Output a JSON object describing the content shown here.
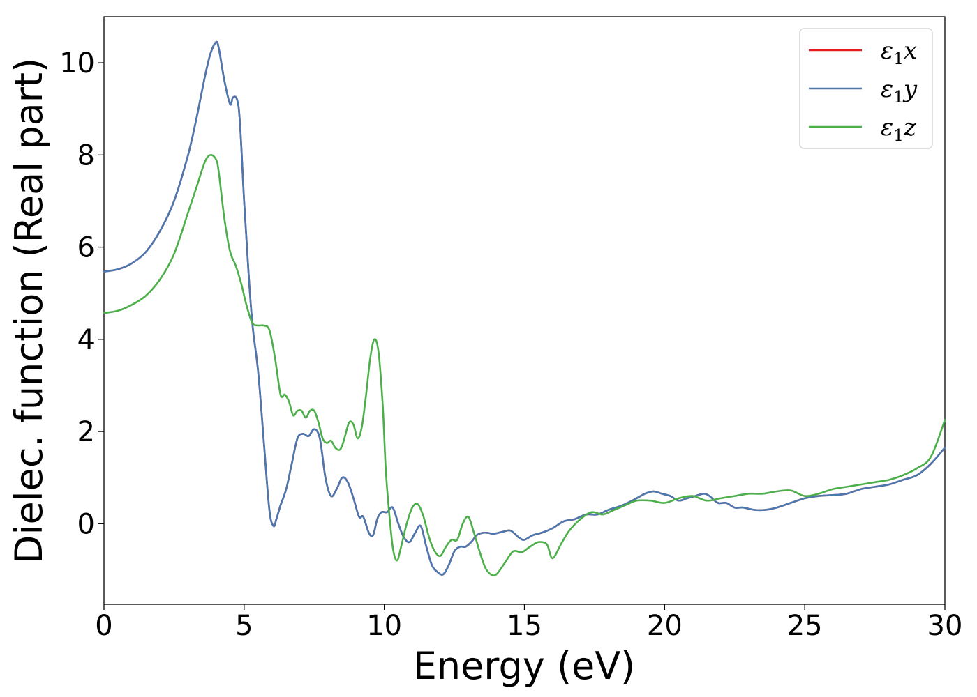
{
  "chart_data": {
    "type": "line",
    "title": "",
    "xlabel": "Energy (eV)",
    "ylabel": "Dielec. function (Real part)",
    "xlim": [
      0,
      30
    ],
    "ylim": [
      -1.75,
      11
    ],
    "xticks": [
      0,
      5,
      10,
      15,
      20,
      25,
      30
    ],
    "yticks": [
      0,
      2,
      4,
      6,
      8,
      10
    ],
    "grid": false,
    "legend_position": "top-right",
    "series": [
      {
        "name": "ε₁x",
        "legend_main": "ε",
        "legend_sub": "1",
        "legend_var": "x",
        "color": "#e41a1c",
        "x": [
          0,
          0.5,
          1,
          1.5,
          2,
          2.5,
          3,
          3.3,
          3.6,
          3.8,
          4.0,
          4.1,
          4.3,
          4.5,
          4.6,
          4.75,
          4.85,
          5.0,
          5.15,
          5.3,
          5.5,
          5.7,
          5.9,
          6.05,
          6.15,
          6.3,
          6.5,
          6.7,
          6.9,
          7.1,
          7.3,
          7.5,
          7.7,
          7.9,
          8.1,
          8.3,
          8.5,
          8.7,
          8.9,
          9.1,
          9.25,
          9.45,
          9.6,
          9.75,
          9.9,
          10.1,
          10.3,
          10.5,
          10.7,
          10.9,
          11.1,
          11.3,
          11.5,
          11.7,
          11.9,
          12.1,
          12.3,
          12.5,
          12.7,
          12.9,
          13.1,
          13.3,
          13.5,
          13.7,
          13.9,
          14.2,
          14.5,
          14.8,
          15.0,
          15.3,
          15.6,
          16.0,
          16.4,
          16.8,
          17.2,
          17.6,
          18.0,
          18.5,
          19.0,
          19.3,
          19.6,
          19.9,
          20.2,
          20.5,
          20.8,
          21.1,
          21.4,
          21.6,
          21.9,
          22.2,
          22.5,
          22.8,
          23.2,
          23.6,
          24.0,
          24.5,
          25.0,
          25.5,
          26.0,
          26.5,
          27.0,
          27.5,
          28.0,
          28.5,
          29.0,
          29.5,
          30.0
        ],
        "y": [
          5.47,
          5.52,
          5.65,
          5.9,
          6.35,
          7.0,
          8.0,
          8.8,
          9.7,
          10.2,
          10.45,
          10.3,
          9.6,
          9.1,
          9.25,
          9.2,
          8.7,
          7.0,
          5.5,
          4.3,
          3.3,
          1.8,
          0.3,
          -0.05,
          0.1,
          0.4,
          0.75,
          1.3,
          1.85,
          1.95,
          1.9,
          2.05,
          1.85,
          1.0,
          0.6,
          0.75,
          1.0,
          0.9,
          0.55,
          0.15,
          0.15,
          -0.2,
          -0.25,
          0.1,
          0.25,
          0.25,
          0.35,
          0.0,
          -0.3,
          -0.4,
          -0.2,
          -0.05,
          -0.5,
          -0.9,
          -1.05,
          -1.1,
          -0.9,
          -0.6,
          -0.5,
          -0.5,
          -0.4,
          -0.25,
          -0.2,
          -0.2,
          -0.22,
          -0.18,
          -0.15,
          -0.3,
          -0.35,
          -0.25,
          -0.2,
          -0.1,
          0.05,
          0.1,
          0.2,
          0.2,
          0.3,
          0.4,
          0.55,
          0.65,
          0.7,
          0.65,
          0.6,
          0.5,
          0.55,
          0.6,
          0.65,
          0.6,
          0.45,
          0.45,
          0.35,
          0.35,
          0.3,
          0.3,
          0.35,
          0.45,
          0.55,
          0.6,
          0.62,
          0.65,
          0.75,
          0.8,
          0.85,
          0.95,
          1.05,
          1.3,
          1.65
        ]
      },
      {
        "name": "ε₁y",
        "legend_main": "ε",
        "legend_sub": "1",
        "legend_var": "y",
        "color": "#4a78b0",
        "x": [
          0,
          0.5,
          1,
          1.5,
          2,
          2.5,
          3,
          3.3,
          3.6,
          3.8,
          4.0,
          4.1,
          4.3,
          4.5,
          4.6,
          4.75,
          4.85,
          5.0,
          5.15,
          5.3,
          5.5,
          5.7,
          5.9,
          6.05,
          6.15,
          6.3,
          6.5,
          6.7,
          6.9,
          7.1,
          7.3,
          7.5,
          7.7,
          7.9,
          8.1,
          8.3,
          8.5,
          8.7,
          8.9,
          9.1,
          9.25,
          9.45,
          9.6,
          9.75,
          9.9,
          10.1,
          10.3,
          10.5,
          10.7,
          10.9,
          11.1,
          11.3,
          11.5,
          11.7,
          11.9,
          12.1,
          12.3,
          12.5,
          12.7,
          12.9,
          13.1,
          13.3,
          13.5,
          13.7,
          13.9,
          14.2,
          14.5,
          14.8,
          15.0,
          15.3,
          15.6,
          16.0,
          16.4,
          16.8,
          17.2,
          17.6,
          18.0,
          18.5,
          19.0,
          19.3,
          19.6,
          19.9,
          20.2,
          20.5,
          20.8,
          21.1,
          21.4,
          21.6,
          21.9,
          22.2,
          22.5,
          22.8,
          23.2,
          23.6,
          24.0,
          24.5,
          25.0,
          25.5,
          26.0,
          26.5,
          27.0,
          27.5,
          28.0,
          28.5,
          29.0,
          29.5,
          30.0
        ],
        "y": [
          5.47,
          5.52,
          5.65,
          5.9,
          6.35,
          7.0,
          8.0,
          8.8,
          9.7,
          10.2,
          10.45,
          10.3,
          9.6,
          9.1,
          9.25,
          9.2,
          8.7,
          7.0,
          5.5,
          4.3,
          3.3,
          1.8,
          0.3,
          -0.05,
          0.1,
          0.4,
          0.75,
          1.3,
          1.85,
          1.95,
          1.9,
          2.05,
          1.85,
          1.0,
          0.6,
          0.75,
          1.0,
          0.9,
          0.55,
          0.15,
          0.15,
          -0.2,
          -0.25,
          0.1,
          0.25,
          0.25,
          0.35,
          0.0,
          -0.3,
          -0.4,
          -0.2,
          -0.05,
          -0.5,
          -0.9,
          -1.05,
          -1.1,
          -0.9,
          -0.6,
          -0.5,
          -0.5,
          -0.4,
          -0.25,
          -0.2,
          -0.2,
          -0.22,
          -0.18,
          -0.15,
          -0.3,
          -0.35,
          -0.25,
          -0.2,
          -0.1,
          0.05,
          0.1,
          0.2,
          0.2,
          0.3,
          0.4,
          0.55,
          0.65,
          0.7,
          0.65,
          0.6,
          0.5,
          0.55,
          0.6,
          0.65,
          0.6,
          0.45,
          0.45,
          0.35,
          0.35,
          0.3,
          0.3,
          0.35,
          0.45,
          0.55,
          0.6,
          0.62,
          0.65,
          0.75,
          0.8,
          0.85,
          0.95,
          1.05,
          1.3,
          1.65
        ]
      },
      {
        "name": "ε₁z",
        "legend_main": "ε",
        "legend_sub": "1",
        "legend_var": "z",
        "color": "#4daf4a",
        "x": [
          0,
          0.5,
          1,
          1.5,
          2,
          2.5,
          3,
          3.3,
          3.6,
          3.8,
          4.0,
          4.1,
          4.3,
          4.5,
          4.7,
          4.9,
          5.1,
          5.3,
          5.5,
          5.7,
          5.9,
          6.1,
          6.3,
          6.45,
          6.6,
          6.75,
          6.9,
          7.05,
          7.2,
          7.35,
          7.5,
          7.65,
          7.8,
          7.95,
          8.1,
          8.25,
          8.4,
          8.5,
          8.6,
          8.75,
          8.9,
          9.05,
          9.2,
          9.35,
          9.5,
          9.65,
          9.8,
          9.95,
          10.05,
          10.15,
          10.3,
          10.45,
          10.6,
          10.8,
          11.0,
          11.2,
          11.4,
          11.6,
          11.8,
          12.0,
          12.2,
          12.4,
          12.6,
          12.8,
          13.0,
          13.2,
          13.4,
          13.6,
          13.8,
          14.0,
          14.3,
          14.6,
          14.9,
          15.2,
          15.5,
          15.8,
          16.0,
          16.3,
          16.6,
          17.0,
          17.4,
          17.8,
          18.2,
          18.6,
          19.0,
          19.5,
          20.0,
          20.5,
          21.0,
          21.5,
          22.0,
          22.5,
          23.0,
          23.5,
          24.0,
          24.5,
          25.0,
          25.5,
          26.0,
          26.5,
          27.0,
          27.5,
          28.0,
          28.5,
          29.0,
          29.5,
          30.0
        ],
        "y": [
          4.57,
          4.62,
          4.75,
          4.95,
          5.3,
          5.85,
          6.75,
          7.3,
          7.85,
          8.0,
          7.9,
          7.6,
          6.6,
          5.9,
          5.6,
          5.2,
          4.7,
          4.35,
          4.3,
          4.3,
          4.2,
          3.6,
          2.8,
          2.8,
          2.65,
          2.35,
          2.45,
          2.45,
          2.3,
          2.45,
          2.45,
          2.2,
          1.85,
          1.75,
          1.8,
          1.65,
          1.6,
          1.7,
          1.9,
          2.2,
          2.15,
          1.85,
          2.1,
          2.8,
          3.6,
          4.0,
          3.7,
          2.5,
          1.2,
          0.4,
          -0.5,
          -0.8,
          -0.5,
          0.0,
          0.35,
          0.42,
          0.15,
          -0.3,
          -0.6,
          -0.7,
          -0.5,
          -0.35,
          -0.35,
          0.0,
          0.15,
          -0.2,
          -0.6,
          -0.95,
          -1.1,
          -1.1,
          -0.85,
          -0.6,
          -0.62,
          -0.5,
          -0.4,
          -0.45,
          -0.75,
          -0.45,
          -0.15,
          0.1,
          0.25,
          0.2,
          0.3,
          0.4,
          0.5,
          0.5,
          0.45,
          0.55,
          0.6,
          0.5,
          0.55,
          0.6,
          0.65,
          0.65,
          0.7,
          0.72,
          0.6,
          0.65,
          0.75,
          0.8,
          0.85,
          0.9,
          0.95,
          1.05,
          1.2,
          1.45,
          2.25
        ]
      }
    ]
  }
}
